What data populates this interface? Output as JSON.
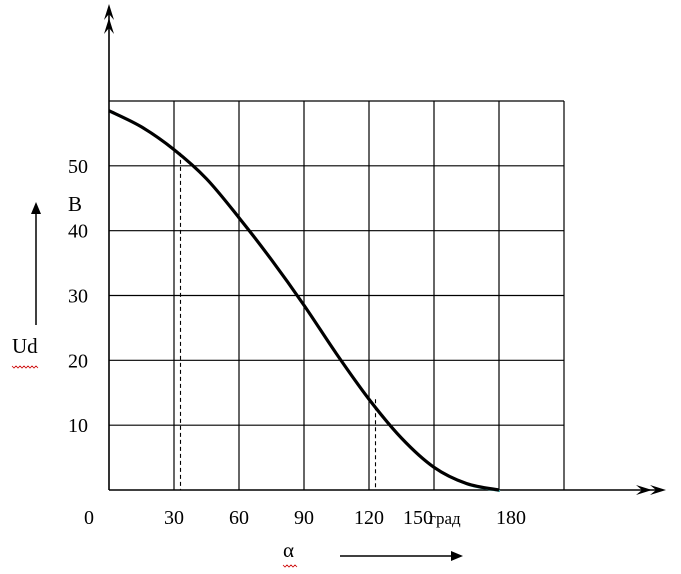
{
  "chart_data": {
    "type": "line",
    "x_ticks": [
      "0",
      "30",
      "60",
      "90",
      "120",
      "150",
      "180"
    ],
    "y_ticks": [
      "10",
      "20",
      "30",
      "40",
      "50"
    ],
    "x_label": "α",
    "x_unit": "град",
    "y_label": "Ud",
    "y_unit": "B",
    "xlim": [
      0,
      210
    ],
    "ylim": [
      0,
      60
    ],
    "grid": true,
    "series": [
      {
        "x": [
          0,
          15,
          30,
          45,
          60,
          75,
          90,
          105,
          120,
          135,
          150,
          165,
          180
        ],
        "y": [
          58.5,
          56,
          52.5,
          48,
          42,
          35.5,
          28.5,
          21,
          14,
          8,
          3.5,
          1,
          0
        ]
      }
    ],
    "markers": [
      {
        "x": 33,
        "y": 52
      },
      {
        "x": 123,
        "y": 14
      }
    ]
  }
}
